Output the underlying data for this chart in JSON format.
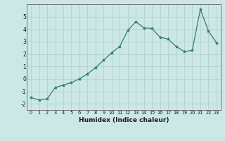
{
  "xlabel": "Humidex (Indice chaleur)",
  "x": [
    0,
    1,
    2,
    3,
    4,
    5,
    6,
    7,
    8,
    9,
    10,
    11,
    12,
    13,
    14,
    15,
    16,
    17,
    18,
    19,
    20,
    21,
    22,
    23
  ],
  "y_actual": [
    -1.5,
    -1.7,
    -1.6,
    -0.7,
    -0.5,
    -0.3,
    0.0,
    0.4,
    0.9,
    1.5,
    2.1,
    2.6,
    3.9,
    4.6,
    4.1,
    4.05,
    3.35,
    3.2,
    2.6,
    2.2,
    2.3,
    5.6,
    3.85,
    2.9
  ],
  "ylim": [
    -2.5,
    6.0
  ],
  "yticks": [
    -2,
    -1,
    0,
    1,
    2,
    3,
    4,
    5
  ],
  "line_color": "#2e7d6e",
  "marker": "*",
  "bg_color": "#cce8e6",
  "grid_color": "#b8d4d2",
  "spine_color": "#707070",
  "tick_color": "#2e7d6e"
}
